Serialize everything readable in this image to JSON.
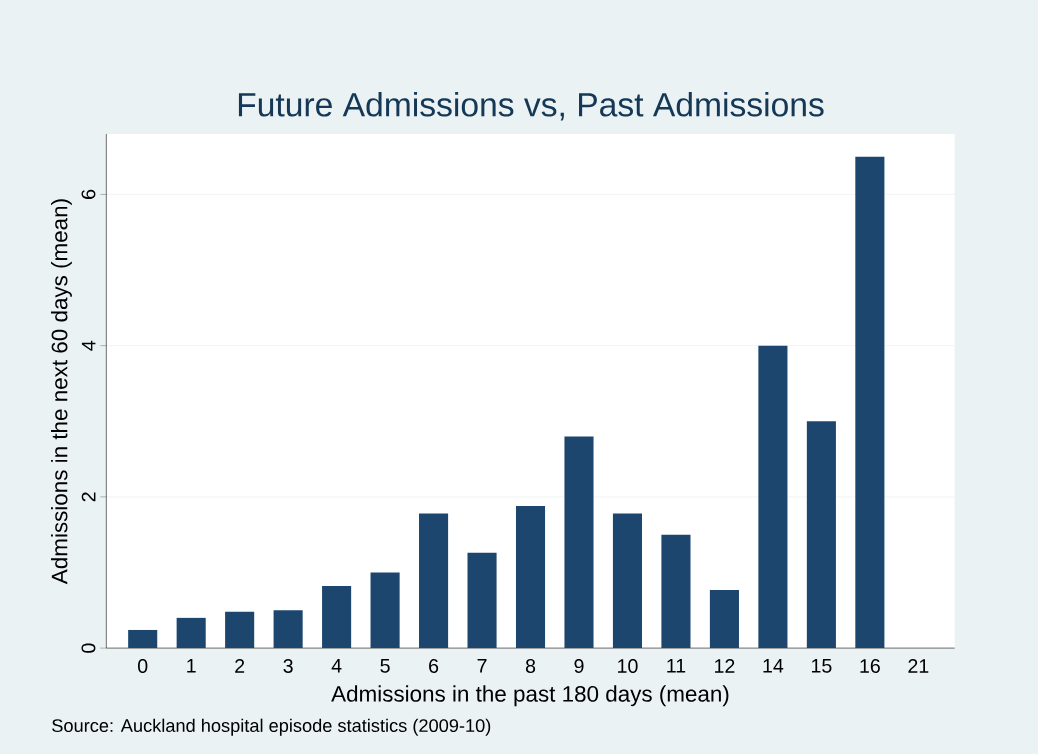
{
  "chart_data": {
    "type": "bar",
    "title": "Future Admissions vs, Past Admissions",
    "xlabel": "Admissions in the past 180 days (mean)",
    "ylabel": "Admissions in the next 60 days (mean)",
    "annotations": [
      "Source: Auckland hospital episode statistics (2009-10)"
    ],
    "categories": [
      "0",
      "1",
      "2",
      "3",
      "4",
      "5",
      "6",
      "7",
      "8",
      "9",
      "10",
      "11",
      "12",
      "14",
      "15",
      "16",
      "21"
    ],
    "values": [
      0.24,
      0.4,
      0.48,
      0.5,
      0.82,
      1.0,
      1.78,
      1.26,
      1.88,
      2.8,
      1.78,
      1.5,
      0.77,
      4.0,
      3.0,
      6.5,
      0
    ],
    "color": "#1c466d",
    "ylim": [
      0,
      6.8
    ],
    "yticks": [
      0,
      2,
      4,
      6
    ],
    "grid": "y"
  }
}
